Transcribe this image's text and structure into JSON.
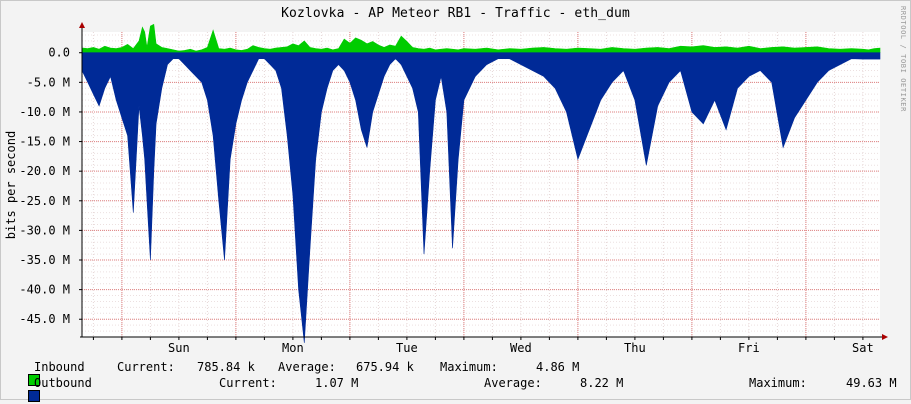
{
  "chart_data": {
    "type": "area",
    "title": "Kozlovka - AP Meteor RB1 - Traffic - eth_dum",
    "ylabel": "bits per second",
    "watermark": "RRDTOOL / TOBI OETIKER",
    "ylim": [
      -48000000,
      3500000
    ],
    "y_ticks": [
      {
        "label": "0.0",
        "value": 0
      },
      {
        "label": "-5.0 M",
        "value": -5000000
      },
      {
        "label": "-10.0 M",
        "value": -10000000
      },
      {
        "label": "-15.0 M",
        "value": -15000000
      },
      {
        "label": "-20.0 M",
        "value": -20000000
      },
      {
        "label": "-25.0 M",
        "value": -25000000
      },
      {
        "label": "-30.0 M",
        "value": -30000000
      },
      {
        "label": "-35.0 M",
        "value": -35000000
      },
      {
        "label": "-40.0 M",
        "value": -40000000
      },
      {
        "label": "-45.0 M",
        "value": -45000000
      }
    ],
    "x_ticks": [
      "Sun",
      "Mon",
      "Tue",
      "Wed",
      "Thu",
      "Fri",
      "Sat"
    ],
    "x_range_days": [
      -0.35,
      6.65
    ],
    "series": [
      {
        "name": "Inbound",
        "color": "#00cc00",
        "x": [
          -0.35,
          -0.3,
          -0.25,
          -0.2,
          -0.15,
          -0.1,
          -0.05,
          0,
          0.05,
          0.1,
          0.15,
          0.18,
          0.2,
          0.22,
          0.25,
          0.28,
          0.3,
          0.35,
          0.4,
          0.45,
          0.5,
          0.55,
          0.6,
          0.65,
          0.7,
          0.75,
          0.8,
          0.85,
          0.9,
          0.95,
          1,
          1.05,
          1.1,
          1.15,
          1.2,
          1.25,
          1.3,
          1.35,
          1.4,
          1.45,
          1.5,
          1.55,
          1.6,
          1.65,
          1.7,
          1.75,
          1.8,
          1.85,
          1.9,
          1.95,
          2,
          2.05,
          2.1,
          2.15,
          2.2,
          2.25,
          2.3,
          2.35,
          2.4,
          2.45,
          2.5,
          2.55,
          2.6,
          2.65,
          2.7,
          2.75,
          2.8,
          2.85,
          2.9,
          2.95,
          3,
          3.1,
          3.2,
          3.3,
          3.4,
          3.5,
          3.6,
          3.7,
          3.8,
          3.9,
          4,
          4.1,
          4.2,
          4.3,
          4.4,
          4.5,
          4.6,
          4.7,
          4.8,
          4.9,
          5,
          5.1,
          5.2,
          5.3,
          5.4,
          5.5,
          5.6,
          5.7,
          5.8,
          5.9,
          6,
          6.1,
          6.2,
          6.3,
          6.4,
          6.5,
          6.55,
          6.6,
          6.65
        ],
        "y": [
          800000,
          700000,
          900000,
          600000,
          1100000,
          800000,
          700000,
          900000,
          1400000,
          700000,
          2000000,
          4300000,
          3500000,
          900000,
          4500000,
          4800000,
          1500000,
          900000,
          700000,
          500000,
          300000,
          400000,
          600000,
          300000,
          500000,
          900000,
          3800000,
          700000,
          600000,
          800000,
          500000,
          400000,
          600000,
          1200000,
          900000,
          700000,
          600000,
          800000,
          900000,
          1000000,
          1500000,
          1200000,
          2000000,
          900000,
          700000,
          600000,
          800000,
          500000,
          700000,
          2300000,
          1600000,
          2500000,
          2100000,
          1500000,
          1900000,
          1300000,
          900000,
          1300000,
          1100000,
          2800000,
          1900000,
          900000,
          700000,
          600000,
          800000,
          500000,
          600000,
          700000,
          600000,
          500000,
          700000,
          600000,
          800000,
          500000,
          700000,
          600000,
          800000,
          900000,
          700000,
          600000,
          800000,
          700000,
          600000,
          900000,
          700000,
          600000,
          800000,
          900000,
          700000,
          1100000,
          1000000,
          1200000,
          900000,
          1000000,
          800000,
          1100000,
          700000,
          900000,
          1000000,
          800000,
          900000,
          1000000,
          700000,
          600000,
          700000,
          600000,
          500000,
          700000,
          785840
        ]
      },
      {
        "name": "Outbound",
        "color": "#002a97",
        "x": [
          -0.35,
          -0.3,
          -0.25,
          -0.2,
          -0.15,
          -0.1,
          -0.05,
          0,
          0.05,
          0.1,
          0.15,
          0.18,
          0.2,
          0.22,
          0.25,
          0.28,
          0.3,
          0.35,
          0.4,
          0.45,
          0.5,
          0.55,
          0.6,
          0.65,
          0.7,
          0.75,
          0.8,
          0.85,
          0.9,
          0.95,
          1,
          1.05,
          1.1,
          1.15,
          1.2,
          1.25,
          1.3,
          1.35,
          1.4,
          1.45,
          1.5,
          1.55,
          1.6,
          1.65,
          1.7,
          1.75,
          1.8,
          1.85,
          1.9,
          1.95,
          2,
          2.05,
          2.1,
          2.15,
          2.2,
          2.25,
          2.3,
          2.35,
          2.4,
          2.45,
          2.5,
          2.55,
          2.6,
          2.65,
          2.7,
          2.75,
          2.8,
          2.85,
          2.9,
          2.95,
          3,
          3.1,
          3.2,
          3.3,
          3.4,
          3.5,
          3.6,
          3.7,
          3.8,
          3.9,
          4,
          4.1,
          4.2,
          4.3,
          4.4,
          4.5,
          4.6,
          4.7,
          4.8,
          4.9,
          5,
          5.1,
          5.2,
          5.3,
          5.4,
          5.5,
          5.6,
          5.7,
          5.8,
          5.9,
          6,
          6.1,
          6.2,
          6.3,
          6.4,
          6.5,
          6.55,
          6.6,
          6.65
        ],
        "y": [
          -3000000,
          -5000000,
          -7000000,
          -9000000,
          -6000000,
          -4000000,
          -8000000,
          -11000000,
          -14000000,
          -27000000,
          -9000000,
          -14000000,
          -18000000,
          -25000000,
          -35000000,
          -20000000,
          -12000000,
          -6000000,
          -2000000,
          -1000000,
          -1000000,
          -2000000,
          -3000000,
          -4000000,
          -5000000,
          -8000000,
          -14000000,
          -25000000,
          -35000000,
          -18000000,
          -12000000,
          -8000000,
          -5000000,
          -3000000,
          -1000000,
          -1000000,
          -2000000,
          -3000000,
          -6000000,
          -14000000,
          -24000000,
          -40000000,
          -49000000,
          -33000000,
          -18000000,
          -10000000,
          -6000000,
          -3000000,
          -2000000,
          -3000000,
          -5000000,
          -8000000,
          -13000000,
          -16000000,
          -10000000,
          -7000000,
          -4000000,
          -2000000,
          -1000000,
          -2000000,
          -4000000,
          -6000000,
          -10000000,
          -34000000,
          -20000000,
          -8000000,
          -4000000,
          -10000000,
          -33000000,
          -18000000,
          -8000000,
          -4000000,
          -2000000,
          -1000000,
          -1000000,
          -2000000,
          -3000000,
          -4000000,
          -6000000,
          -10000000,
          -18000000,
          -13000000,
          -8000000,
          -5000000,
          -3000000,
          -8000000,
          -19000000,
          -9000000,
          -5000000,
          -3000000,
          -10000000,
          -12000000,
          -8000000,
          -13000000,
          -6000000,
          -4000000,
          -3000000,
          -5000000,
          -16000000,
          -11000000,
          -8000000,
          -5000000,
          -3000000,
          -2000000,
          -1000000,
          -1070000,
          -1070000,
          -1070000,
          -1070000
        ]
      }
    ]
  },
  "legend": {
    "inbound": {
      "label": "Inbound",
      "current_label": "Current:",
      "current": "785.84 k",
      "average_label": "Average:",
      "average": "675.94 k",
      "maximum_label": "Maximum:",
      "maximum": "4.86 M",
      "color": "#00cc00"
    },
    "outbound": {
      "label": "Outbound",
      "current_label": "Current:",
      "current": "1.07 M",
      "average_label": "Average:",
      "average": "8.22 M",
      "maximum_label": "Maximum:",
      "maximum": "49.63 M",
      "color": "#002a97"
    }
  }
}
